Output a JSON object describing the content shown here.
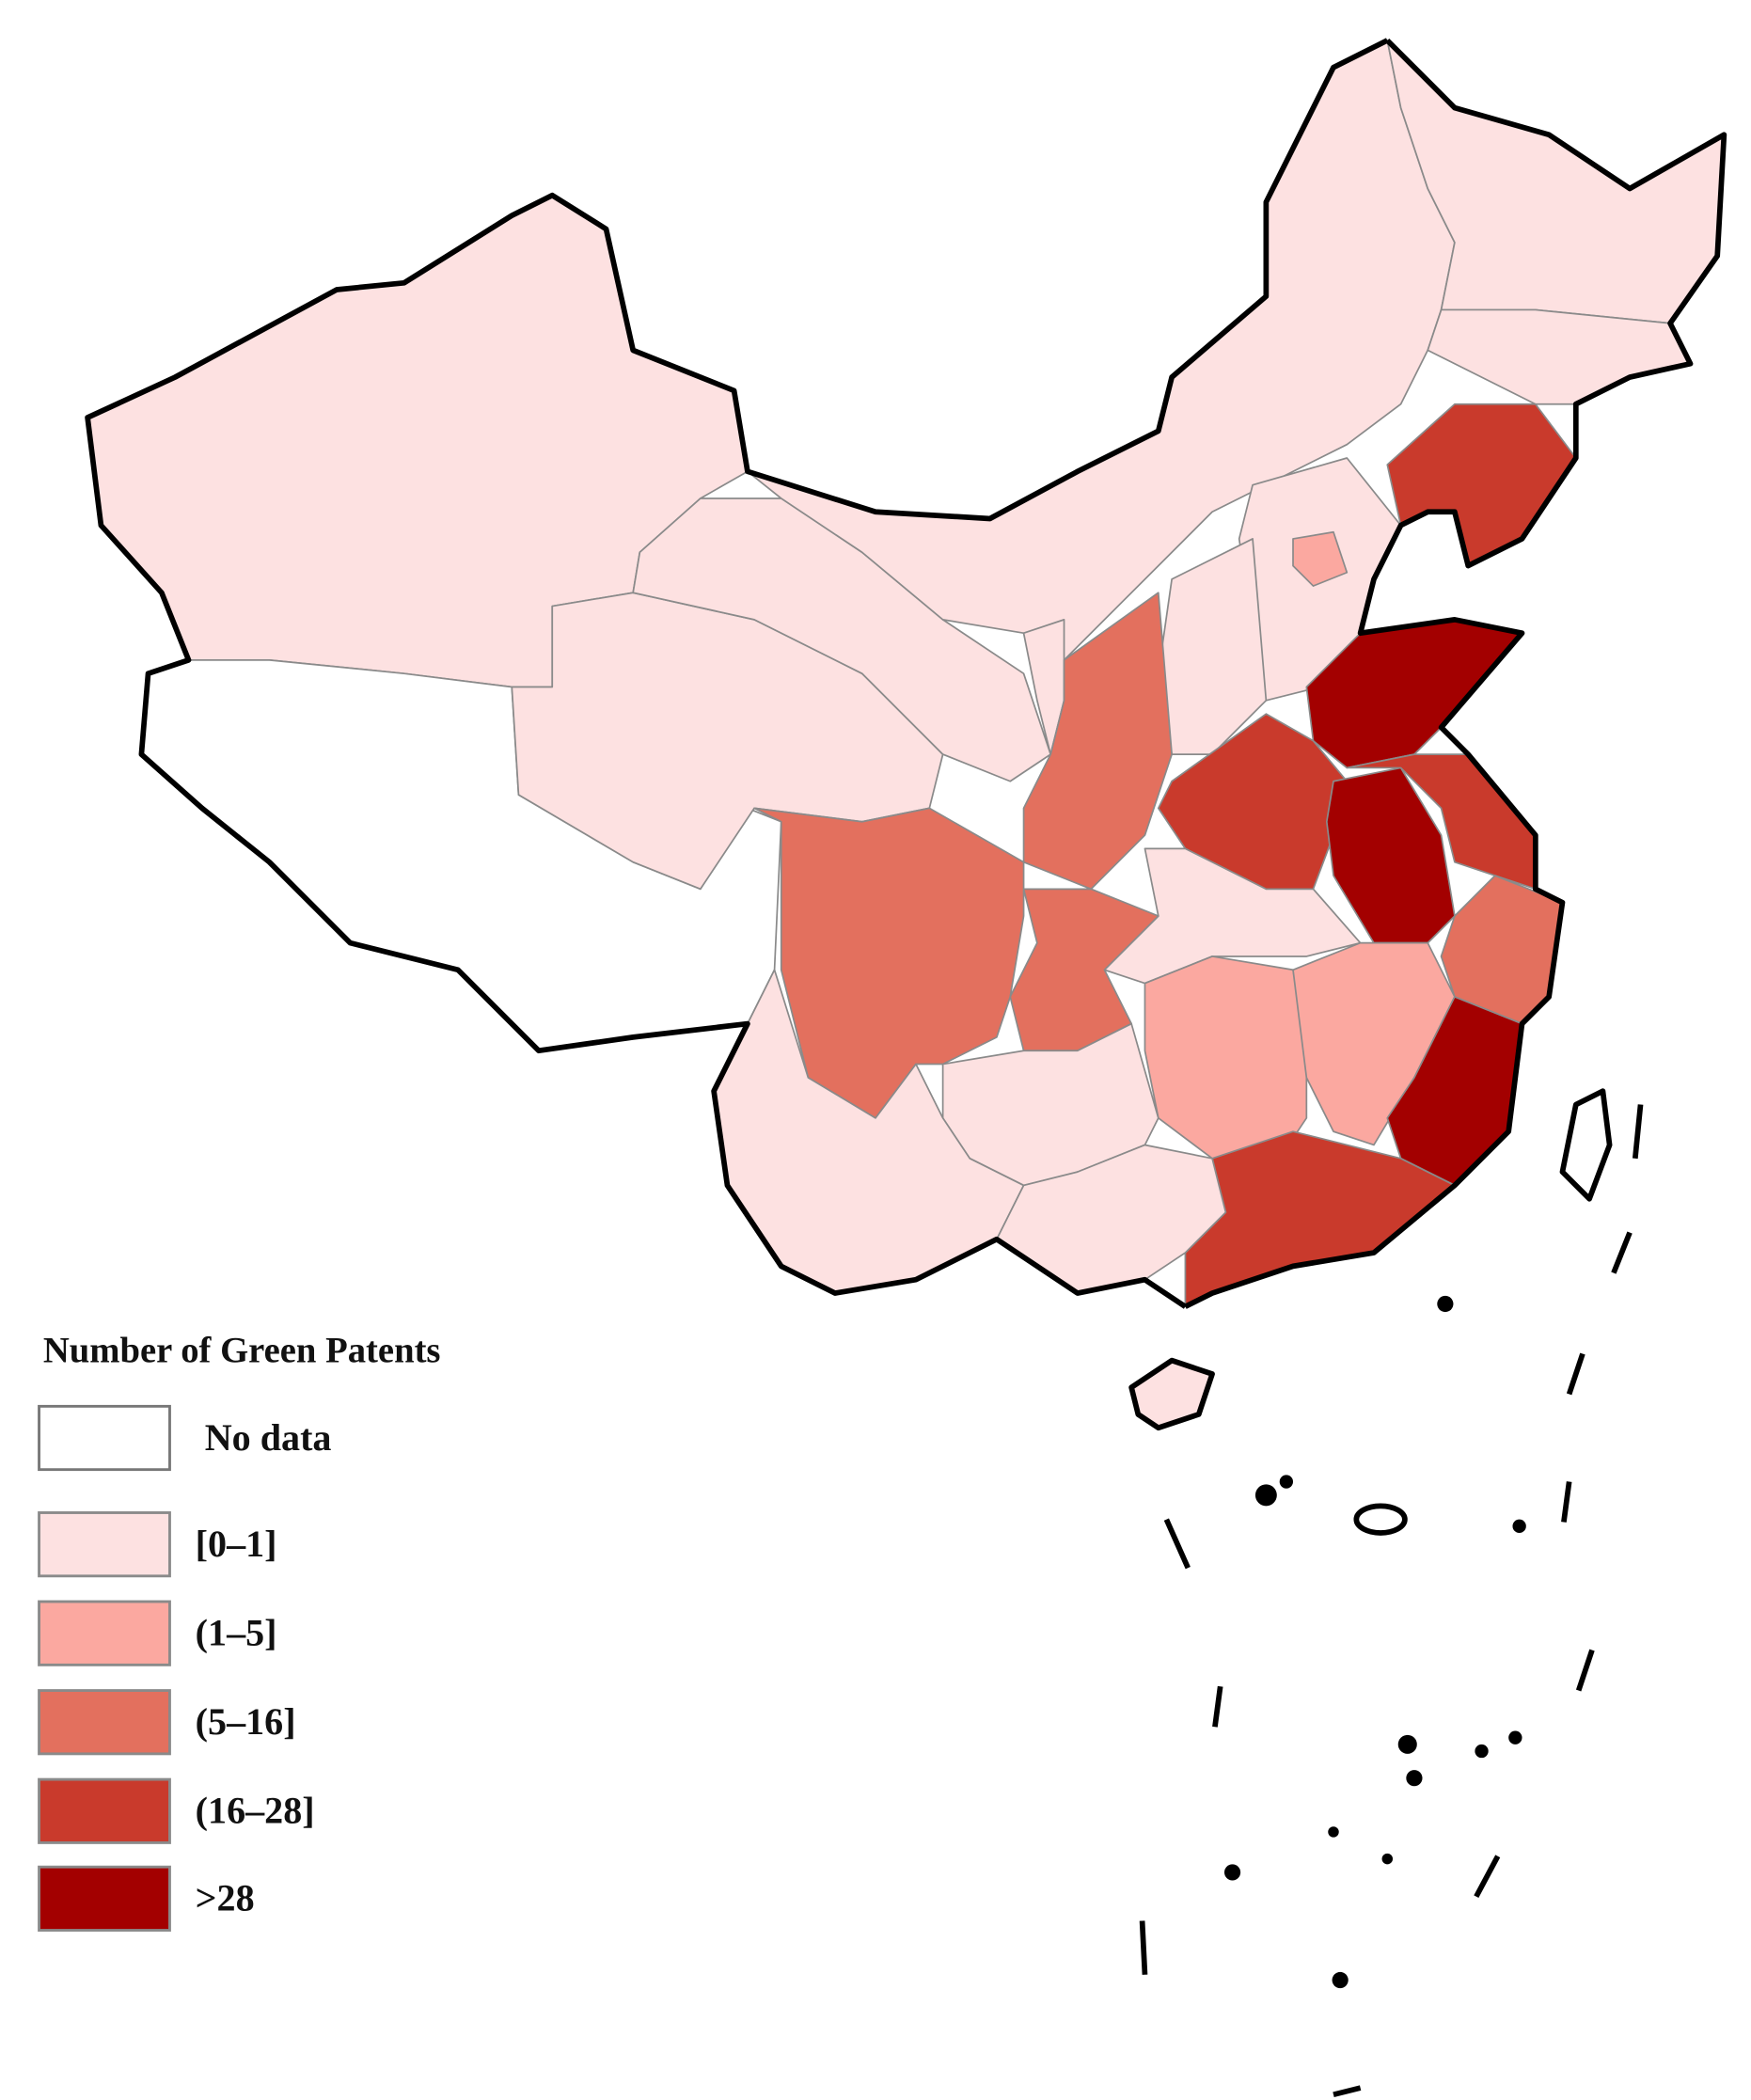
{
  "legend": {
    "title": "Number of Green Patents",
    "items": [
      {
        "label": "No data",
        "color": "#ffffff"
      },
      {
        "label": "[0–1]",
        "color": "#fde1e1"
      },
      {
        "label": "(1–5]",
        "color": "#fba8a0"
      },
      {
        "label": "(5–16]",
        "color": "#e3705e"
      },
      {
        "label": "(16–28]",
        "color": "#c93a2c"
      },
      {
        "label": ">28",
        "color": "#a30000"
      }
    ]
  }
}
